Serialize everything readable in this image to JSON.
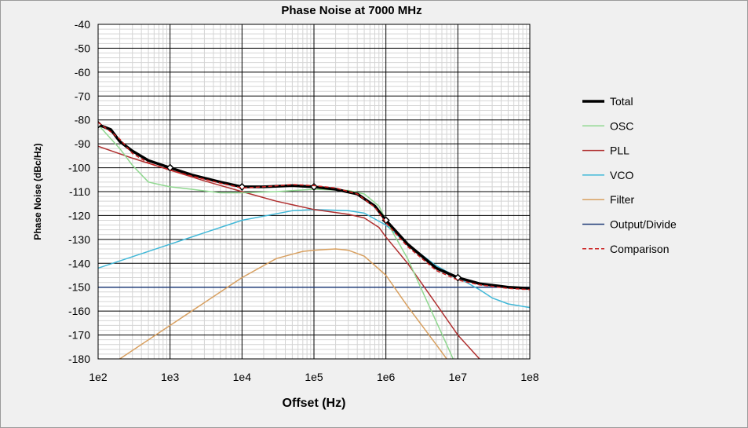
{
  "chart_data": {
    "type": "line",
    "title": "Phase Noise at 7000 MHz",
    "xlabel": "Offset (Hz)",
    "ylabel": "Phase Noise (dBc/Hz)",
    "xscale": "log",
    "xlim": [
      100,
      100000000
    ],
    "ylim": [
      -180,
      -40
    ],
    "x_ticks": [
      "1e2",
      "1e3",
      "1e4",
      "1e5",
      "1e6",
      "1e7",
      "1e8"
    ],
    "y_ticks": [
      "-40",
      "-50",
      "-60",
      "-70",
      "-80",
      "-90",
      "-100",
      "-110",
      "-120",
      "-130",
      "-140",
      "-150",
      "-160",
      "-170",
      "-180"
    ],
    "grid": true,
    "legend_position": "right",
    "series": [
      {
        "name": "Total",
        "color": "#000000",
        "width": 3.5,
        "dash": "",
        "points": [
          [
            100,
            -82
          ],
          [
            150,
            -84
          ],
          [
            200,
            -89
          ],
          [
            300,
            -93
          ],
          [
            500,
            -97
          ],
          [
            1000,
            -100
          ],
          [
            2000,
            -103
          ],
          [
            5000,
            -106
          ],
          [
            10000,
            -108
          ],
          [
            20000,
            -108
          ],
          [
            50000,
            -107.5
          ],
          [
            100000,
            -108
          ],
          [
            200000,
            -109
          ],
          [
            400000,
            -111
          ],
          [
            700000,
            -116
          ],
          [
            1000000,
            -122
          ],
          [
            2000000,
            -132
          ],
          [
            5000000,
            -142
          ],
          [
            10000000,
            -146
          ],
          [
            20000000,
            -148.5
          ],
          [
            50000000,
            -150
          ],
          [
            100000000,
            -150.5
          ]
        ],
        "markers": [
          [
            100,
            -82
          ],
          [
            1000,
            -100
          ],
          [
            10000,
            -108
          ],
          [
            100000,
            -108
          ],
          [
            1000000,
            -122
          ],
          [
            10000000,
            -146
          ]
        ]
      },
      {
        "name": "OSC",
        "color": "#90d890",
        "width": 1.5,
        "dash": "",
        "points": [
          [
            100,
            -82
          ],
          [
            200,
            -92
          ],
          [
            300,
            -99
          ],
          [
            500,
            -106
          ],
          [
            700,
            -107
          ],
          [
            1000,
            -108
          ],
          [
            2000,
            -109
          ],
          [
            5000,
            -110.5
          ],
          [
            10000,
            -110.5
          ],
          [
            30000,
            -110
          ],
          [
            100000,
            -109
          ],
          [
            300000,
            -109.5
          ],
          [
            500000,
            -111
          ],
          [
            800000,
            -116
          ],
          [
            1000000,
            -122
          ],
          [
            2000000,
            -138
          ],
          [
            4000000,
            -158
          ],
          [
            7000000,
            -174
          ],
          [
            8600000,
            -180
          ]
        ]
      },
      {
        "name": "PLL",
        "color": "#b03030",
        "width": 1.5,
        "dash": "",
        "points": [
          [
            100,
            -91
          ],
          [
            300,
            -96
          ],
          [
            1000,
            -101
          ],
          [
            3000,
            -105.5
          ],
          [
            10000,
            -110
          ],
          [
            30000,
            -114
          ],
          [
            100000,
            -117.5
          ],
          [
            300000,
            -119.5
          ],
          [
            500000,
            -121
          ],
          [
            800000,
            -125
          ],
          [
            1000000,
            -129
          ],
          [
            2000000,
            -140
          ],
          [
            5000000,
            -157
          ],
          [
            10000000,
            -170
          ],
          [
            20000000,
            -180
          ]
        ]
      },
      {
        "name": "VCO",
        "color": "#40b8d8",
        "width": 1.5,
        "dash": "",
        "points": [
          [
            100,
            -142
          ],
          [
            1000,
            -132
          ],
          [
            10000,
            -122
          ],
          [
            50000,
            -118
          ],
          [
            100000,
            -117.5
          ],
          [
            300000,
            -118
          ],
          [
            500000,
            -119
          ],
          [
            1000000,
            -124
          ],
          [
            2000000,
            -132
          ],
          [
            5000000,
            -141
          ],
          [
            10000000,
            -146
          ],
          [
            20000000,
            -151
          ],
          [
            30000000,
            -154.5
          ],
          [
            50000000,
            -157
          ],
          [
            100000000,
            -158.5
          ]
        ]
      },
      {
        "name": "Filter",
        "color": "#d8a060",
        "width": 1.5,
        "dash": "",
        "points": [
          [
            200,
            -180
          ],
          [
            1000,
            -166
          ],
          [
            10000,
            -146
          ],
          [
            30000,
            -138
          ],
          [
            70000,
            -135
          ],
          [
            100000,
            -134.5
          ],
          [
            200000,
            -134
          ],
          [
            300000,
            -134.5
          ],
          [
            500000,
            -137
          ],
          [
            1000000,
            -145
          ],
          [
            2000000,
            -158
          ],
          [
            5000000,
            -174
          ],
          [
            7000000,
            -180
          ]
        ]
      },
      {
        "name": "Output/Divide",
        "color": "#203c78",
        "width": 1.5,
        "dash": "",
        "points": [
          [
            100,
            -150
          ],
          [
            100000000,
            -150
          ]
        ]
      },
      {
        "name": "Comparison",
        "color": "#cc2020",
        "width": 1.5,
        "dash": "5,3",
        "points": [
          [
            100,
            -81
          ],
          [
            150,
            -85
          ],
          [
            200,
            -88
          ],
          [
            300,
            -94
          ],
          [
            500,
            -98
          ],
          [
            1000,
            -101
          ],
          [
            2000,
            -103.5
          ],
          [
            5000,
            -106.5
          ],
          [
            10000,
            -108.5
          ],
          [
            20000,
            -108
          ],
          [
            50000,
            -107
          ],
          [
            100000,
            -107.5
          ],
          [
            200000,
            -108.5
          ],
          [
            400000,
            -111
          ],
          [
            700000,
            -116.5
          ],
          [
            1000000,
            -123
          ],
          [
            2000000,
            -133
          ],
          [
            5000000,
            -143
          ],
          [
            10000000,
            -147
          ],
          [
            20000000,
            -149
          ],
          [
            50000000,
            -150.5
          ],
          [
            100000000,
            -151
          ]
        ]
      }
    ]
  }
}
